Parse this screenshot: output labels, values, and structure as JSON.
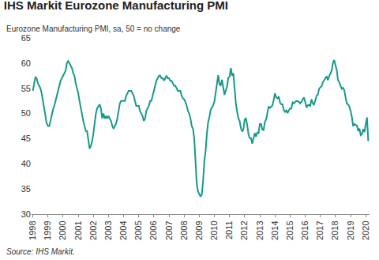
{
  "chart_data": {
    "type": "line",
    "title": "IHS Markit Eurozone Manufacturing PMI",
    "subtitle": "Eurozone Manufacturing PMI, sa, 50 = no change",
    "source": "Source: IHS Markit.",
    "categories": [
      "1998",
      null,
      null,
      null,
      null,
      null,
      null,
      null,
      null,
      null,
      null,
      null,
      "1999",
      null,
      null,
      null,
      null,
      null,
      null,
      null,
      null,
      null,
      null,
      null,
      "2000",
      null,
      null,
      null,
      null,
      null,
      null,
      null,
      null,
      null,
      null,
      null,
      "2001",
      null,
      null,
      null,
      null,
      null,
      null,
      null,
      null,
      null,
      null,
      null,
      "2002",
      null,
      null,
      null,
      null,
      null,
      null,
      null,
      null,
      null,
      null,
      null,
      "2003",
      null,
      null,
      null,
      null,
      null,
      null,
      null,
      null,
      null,
      null,
      null,
      "2004",
      null,
      null,
      null,
      null,
      null,
      null,
      null,
      null,
      null,
      null,
      null,
      "2005",
      null,
      null,
      null,
      null,
      null,
      null,
      null,
      null,
      null,
      null,
      null,
      "2006",
      null,
      null,
      null,
      null,
      null,
      null,
      null,
      null,
      null,
      null,
      null,
      "2007",
      null,
      null,
      null,
      null,
      null,
      null,
      null,
      null,
      null,
      null,
      null,
      "2008",
      null,
      null,
      null,
      null,
      null,
      null,
      null,
      null,
      null,
      null,
      null,
      "2009",
      null,
      null,
      null,
      null,
      null,
      null,
      null,
      null,
      null,
      null,
      null,
      "2010",
      null,
      null,
      null,
      null,
      null,
      null,
      null,
      null,
      null,
      null,
      null,
      "2011",
      null,
      null,
      null,
      null,
      null,
      null,
      null,
      null,
      null,
      null,
      null,
      "2012",
      null,
      null,
      null,
      null,
      null,
      null,
      null,
      null,
      null,
      null,
      null,
      "2013",
      null,
      null,
      null,
      null,
      null,
      null,
      null,
      null,
      null,
      null,
      null,
      "2014",
      null,
      null,
      null,
      null,
      null,
      null,
      null,
      null,
      null,
      null,
      null,
      "2015",
      null,
      null,
      null,
      null,
      null,
      null,
      null,
      null,
      null,
      null,
      null,
      "2016",
      null,
      null,
      null,
      null,
      null,
      null,
      null,
      null,
      null,
      null,
      null,
      "2017",
      null,
      null,
      null,
      null,
      null,
      null,
      null,
      null,
      null,
      null,
      null,
      "2018",
      null,
      null,
      null,
      null,
      null,
      null,
      null,
      null,
      null,
      null,
      null,
      "2019",
      null,
      null,
      null,
      null,
      null,
      null,
      null,
      null,
      null,
      null,
      null,
      "2020",
      null,
      null
    ],
    "values": [
      54.5,
      56.0,
      57.2,
      57.0,
      56.0,
      55.5,
      55.0,
      54.0,
      52.5,
      51.0,
      49.5,
      48.0,
      47.5,
      47.5,
      48.5,
      50.0,
      50.8,
      51.5,
      52.5,
      53.5,
      54.5,
      55.5,
      56.5,
      57.0,
      57.5,
      57.8,
      58.5,
      60.0,
      60.4,
      60.0,
      59.5,
      59.0,
      58.0,
      57.5,
      56.0,
      55.0,
      54.0,
      52.5,
      51.0,
      49.5,
      48.5,
      47.5,
      46.5,
      46.5,
      45.0,
      43.0,
      43.5,
      44.5,
      46.0,
      48.0,
      50.0,
      51.0,
      51.5,
      51.8,
      51.0,
      49.0,
      50.0,
      49.0,
      49.5,
      49.0,
      49.5,
      49.0,
      48.5,
      47.5,
      47.0,
      47.5,
      48.0,
      49.0,
      50.5,
      52.0,
      52.5,
      52.5,
      52.5,
      52.5,
      53.5,
      54.0,
      54.5,
      54.5,
      54.5,
      54.0,
      53.5,
      52.5,
      51.5,
      51.5,
      51.5,
      50.5,
      50.0,
      49.5,
      48.5,
      49.0,
      50.5,
      51.0,
      51.5,
      52.5,
      52.5,
      53.5,
      54.5,
      55.5,
      56.5,
      57.0,
      57.5,
      57.5,
      57.0,
      57.0,
      56.5,
      57.0,
      57.5,
      57.0,
      57.0,
      56.5,
      56.5,
      56.0,
      55.5,
      55.5,
      55.0,
      54.5,
      54.5,
      54.5,
      53.5,
      53.0,
      52.8,
      52.3,
      51.5,
      50.5,
      50.0,
      49.0,
      47.5,
      47.0,
      45.0,
      41.0,
      36.0,
      34.5,
      34.0,
      33.5,
      33.9,
      36.5,
      40.5,
      42.5,
      46.0,
      48.2,
      49.3,
      50.7,
      51.2,
      51.6,
      52.4,
      54.2,
      56.6,
      57.6,
      55.8,
      55.6,
      56.7,
      55.1,
      53.7,
      54.6,
      55.3,
      57.1,
      57.3,
      59.0,
      57.5,
      58.0,
      54.6,
      52.0,
      50.4,
      49.0,
      48.5,
      47.1,
      46.4,
      46.9,
      48.8,
      49.0,
      47.7,
      45.9,
      45.1,
      45.1,
      44.0,
      45.1,
      46.1,
      45.4,
      46.2,
      46.1,
      47.9,
      47.9,
      46.8,
      46.7,
      48.3,
      48.8,
      50.3,
      51.4,
      51.1,
      51.3,
      51.6,
      52.7,
      54.0,
      53.2,
      53.0,
      53.4,
      52.2,
      51.8,
      51.8,
      50.7,
      50.3,
      50.6,
      50.1,
      50.6,
      51.0,
      51.0,
      52.2,
      52.0,
      52.2,
      52.5,
      52.4,
      52.3,
      52.0,
      52.3,
      52.8,
      53.2,
      52.3,
      51.2,
      51.6,
      51.7,
      51.5,
      52.8,
      52.0,
      51.7,
      52.6,
      53.5,
      53.7,
      54.9,
      55.2,
      55.4,
      56.2,
      56.7,
      57.0,
      57.4,
      56.6,
      57.4,
      58.1,
      58.5,
      60.1,
      60.6,
      59.6,
      58.6,
      56.6,
      56.2,
      55.5,
      54.9,
      55.1,
      54.6,
      53.2,
      52.0,
      51.8,
      51.4,
      50.5,
      49.3,
      47.5,
      47.9,
      47.7,
      47.6,
      46.5,
      47.0,
      45.7,
      45.9,
      46.9,
      46.3,
      47.9,
      49.2,
      44.5
    ],
    "color": "#17998a",
    "ylim": [
      30,
      65
    ],
    "yticks": [
      30,
      35,
      40,
      45,
      50,
      55,
      60,
      65
    ],
    "grid": false
  }
}
